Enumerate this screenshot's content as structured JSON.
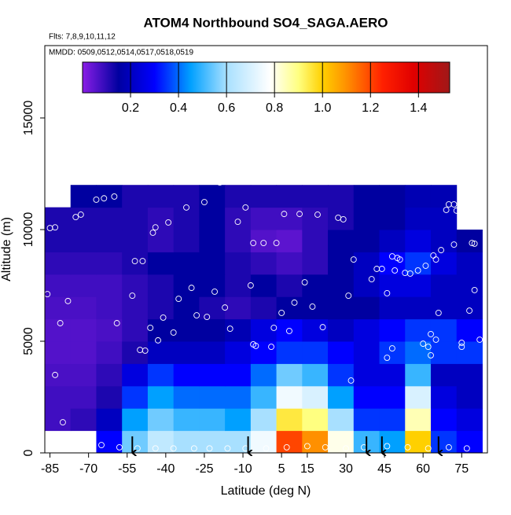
{
  "chart_data": {
    "type": "heatmap",
    "title": "ATOM4 Northbound SO4_SAGA.AERO",
    "subtitle": "Flts: 7,8,9,10,11,12",
    "annotation": "MMDD: 0509,0512,0514,0517,0518,0519",
    "x_label": "Latitude (deg N)",
    "y_label": "Altitude (m)",
    "xlim": [
      -87,
      85
    ],
    "ylim": [
      0,
      18240
    ],
    "xticks": [
      -85,
      -70,
      -55,
      -40,
      -25,
      -10,
      5,
      15,
      30,
      45,
      60,
      75
    ],
    "yticks": [
      0,
      5000,
      10000,
      15000
    ],
    "x_edges": [
      -87,
      -77,
      -67,
      -57,
      -47,
      -37,
      -27,
      -17,
      -7,
      3,
      13,
      23,
      33,
      43,
      53,
      63,
      73,
      83
    ],
    "y_edges": [
      0,
      1000,
      2000,
      3000,
      4000,
      5000,
      6000,
      7000,
      8000,
      9000,
      10000,
      11000,
      12000
    ],
    "z": [
      [
        null,
        null,
        0.3,
        0.55,
        0.65,
        0.6,
        0.6,
        0.6,
        0.75,
        1.2,
        1.1,
        0.8,
        0.5,
        0.45,
        1.0,
        0.35,
        0.3
      ],
      [
        0.08,
        0.1,
        0.2,
        0.45,
        0.55,
        0.5,
        0.5,
        0.45,
        0.6,
        0.95,
        0.9,
        0.6,
        0.35,
        0.35,
        0.85,
        0.3,
        0.25
      ],
      [
        0.08,
        0.08,
        0.12,
        0.35,
        0.45,
        0.4,
        0.4,
        0.4,
        0.5,
        0.75,
        0.7,
        0.45,
        0.3,
        0.3,
        0.7,
        0.25,
        0.2
      ],
      [
        0.07,
        0.07,
        0.1,
        0.25,
        0.35,
        0.3,
        0.3,
        0.3,
        0.4,
        0.55,
        0.5,
        0.35,
        0.25,
        0.25,
        0.5,
        0.2,
        0.2
      ],
      [
        0.06,
        0.06,
        0.08,
        0.12,
        0.2,
        0.2,
        0.2,
        0.25,
        0.3,
        0.35,
        0.35,
        0.3,
        0.25,
        0.35,
        0.4,
        0.35,
        0.35
      ],
      [
        0.06,
        0.06,
        0.07,
        0.1,
        0.15,
        0.15,
        0.15,
        0.18,
        0.25,
        0.3,
        0.25,
        0.2,
        0.25,
        0.3,
        0.35,
        0.35,
        0.3
      ],
      [
        0.07,
        0.07,
        0.08,
        0.1,
        0.12,
        0.15,
        0.12,
        0.1,
        0.12,
        0.15,
        0.15,
        0.15,
        0.15,
        0.2,
        0.2,
        0.2,
        0.2
      ],
      [
        0.08,
        0.08,
        0.08,
        0.1,
        0.12,
        0.15,
        0.15,
        0.12,
        0.15,
        0.12,
        0.15,
        0.15,
        0.2,
        0.25,
        0.25,
        0.2,
        0.2
      ],
      [
        0.1,
        0.1,
        0.1,
        0.12,
        0.15,
        0.15,
        0.15,
        0.12,
        0.1,
        0.08,
        0.1,
        0.15,
        0.2,
        0.3,
        0.35,
        0.25,
        0.2
      ],
      [
        0.12,
        0.12,
        0.12,
        0.12,
        0.1,
        0.12,
        0.15,
        0.1,
        0.06,
        0.05,
        0.1,
        0.15,
        0.15,
        0.2,
        0.25,
        0.2,
        0.15
      ],
      [
        0.12,
        0.12,
        0.12,
        0.12,
        0.1,
        0.12,
        0.15,
        0.1,
        0.08,
        0.08,
        0.1,
        0.12,
        0.15,
        0.15,
        0.2,
        0.2,
        null
      ],
      [
        null,
        0.15,
        0.15,
        0.12,
        0.12,
        0.12,
        0.15,
        0.12,
        0.12,
        0.12,
        0.12,
        0.12,
        0.15,
        0.15,
        0.18,
        0.18,
        null
      ]
    ],
    "colorbar": {
      "lim": [
        0,
        1.53
      ],
      "ticks": [
        0.2,
        0.4,
        0.6,
        0.8,
        {
          "value": 1,
          "label": "1.0"
        },
        1.2,
        1.4
      ],
      "stops": [
        {
          "value": 0,
          "color": "#8a1ee6"
        },
        {
          "value": 0.15,
          "color": "#0000a0"
        },
        {
          "value": 0.3,
          "color": "#0000ff"
        },
        {
          "value": 0.45,
          "color": "#00a0ff"
        },
        {
          "value": 0.6,
          "color": "#a8e0ff"
        },
        {
          "value": 0.78,
          "color": "#ffffff"
        },
        {
          "value": 0.9,
          "color": "#ffff80"
        },
        {
          "value": 1.0,
          "color": "#ffd000"
        },
        {
          "value": 1.1,
          "color": "#ff9000"
        },
        {
          "value": 1.25,
          "color": "#ff2000"
        },
        {
          "value": 1.38,
          "color": "#e00000"
        },
        {
          "value": 1.53,
          "color": "#a01818"
        }
      ]
    },
    "points": {
      "color": "#ffffff",
      "x": [
        -86,
        -81,
        -78,
        -85,
        -83,
        -75,
        -73,
        -67,
        -64,
        -60,
        -52,
        -49,
        -53,
        -59,
        -50,
        -48,
        -46,
        -43,
        -41,
        -37,
        -45,
        -44,
        -39,
        -32,
        -25,
        -19,
        -30,
        -35,
        -28,
        -24,
        -21,
        -17,
        -15,
        -12,
        -9,
        -7,
        -6,
        -6,
        -5,
        1,
        -2,
        3,
        2,
        5,
        6,
        8,
        10,
        12,
        14,
        17,
        19,
        21,
        27,
        29,
        31,
        32,
        33,
        40,
        42,
        44,
        46,
        46,
        48,
        48,
        50,
        51,
        49,
        53,
        55,
        58,
        61,
        64,
        65,
        63,
        60,
        62,
        63,
        65,
        66,
        67,
        70,
        69,
        72,
        73,
        72,
        75,
        75,
        78,
        79,
        80,
        80,
        82,
        -83,
        -80,
        -65,
        -58,
        -51,
        -44,
        -37,
        -29,
        -23,
        -16,
        -9,
        -1,
        7,
        15,
        22,
        30,
        37,
        46,
        54,
        62,
        70,
        77
      ],
      "y": [
        7110,
        5810,
        6800,
        10070,
        10100,
        10560,
        10670,
        11340,
        11400,
        11480,
        8590,
        8590,
        7040,
        5810,
        4610,
        4580,
        5600,
        5040,
        6060,
        5390,
        9860,
        10100,
        10320,
        10990,
        11230,
        12110,
        7390,
        6900,
        6160,
        6090,
        7220,
        6510,
        5560,
        10350,
        10990,
        7500,
        9400,
        4860,
        4790,
        4750,
        9400,
        9400,
        5600,
        6270,
        10700,
        5460,
        6730,
        10700,
        7640,
        6550,
        10670,
        5630,
        10530,
        10460,
        7040,
        3240,
        8660,
        7780,
        8240,
        8240,
        7150,
        4260,
        4680,
        8800,
        8730,
        8660,
        8170,
        8060,
        8030,
        8170,
        8380,
        8840,
        8660,
        4370,
        4890,
        4750,
        5320,
        5070,
        6270,
        9080,
        11130,
        10880,
        11130,
        10850,
        9330,
        4750,
        4930,
        6370,
        9400,
        7290,
        9370,
        5070,
        3490,
        1370,
        350,
        250,
        200,
        200,
        200,
        200,
        200,
        200,
        200,
        200,
        250,
        300,
        250,
        200,
        250,
        300,
        250,
        200,
        250,
        200
      ]
    },
    "profile_lat": [
      -53,
      -8,
      38,
      44,
      66
    ]
  }
}
